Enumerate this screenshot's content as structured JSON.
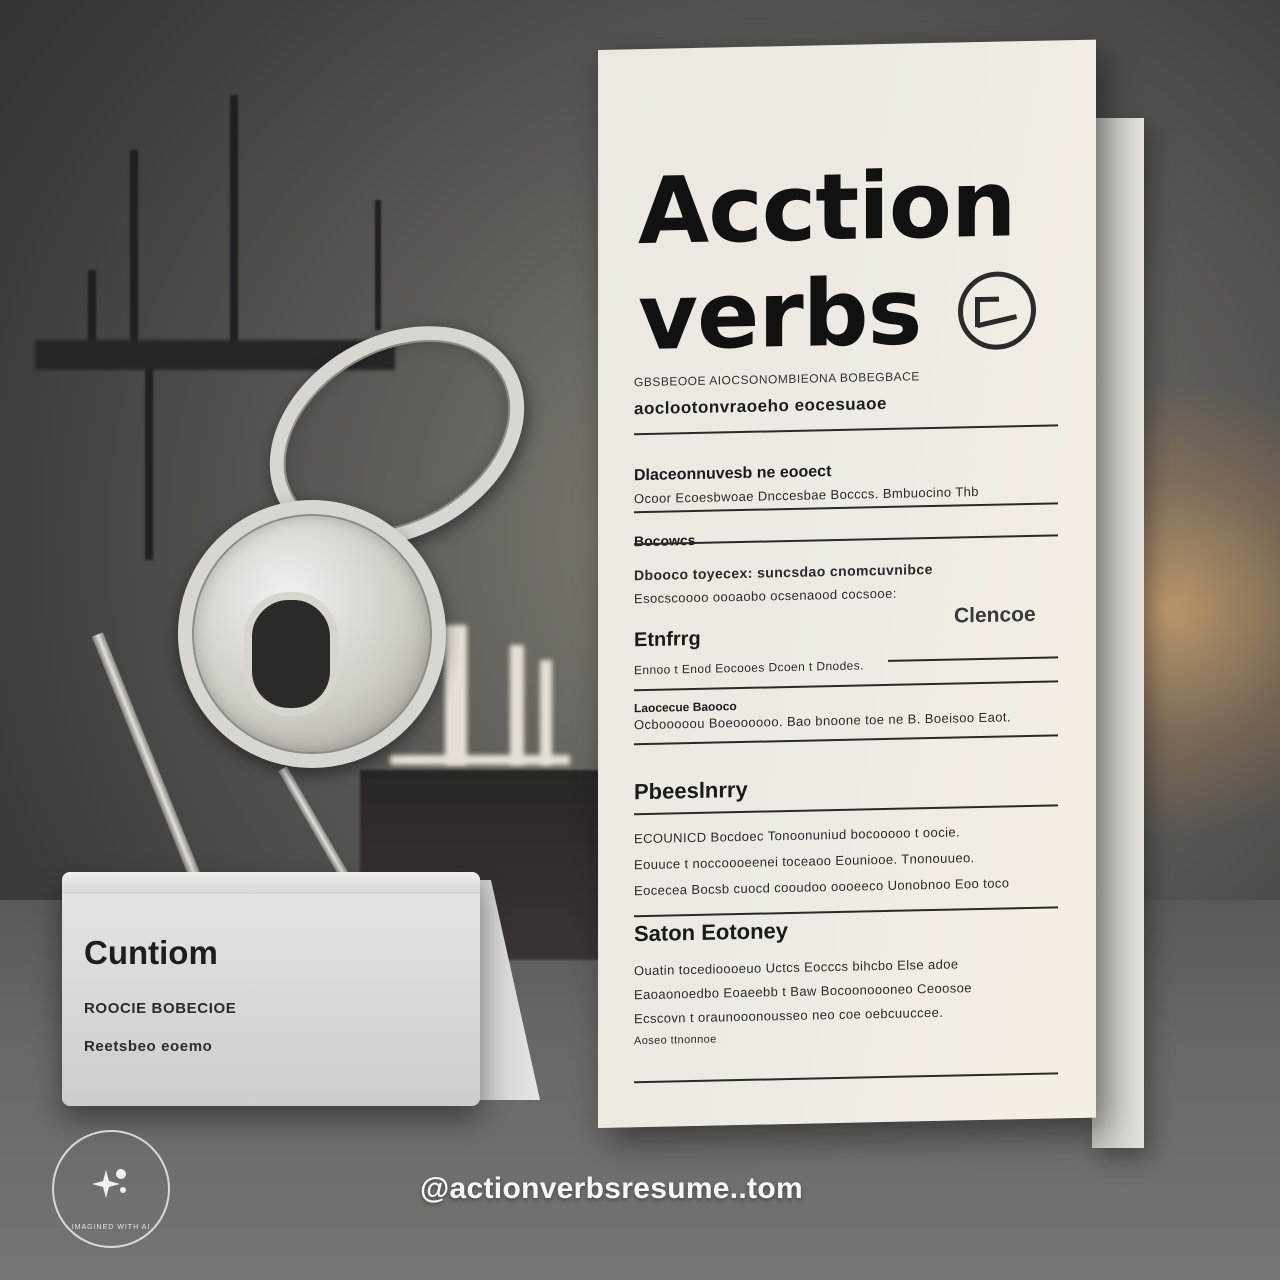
{
  "document": {
    "title_line1": "Acction",
    "title_line2": "verbs",
    "subtitle_small": "GBSBEOOE AIOCSONOMBIEONA BOBEGBACE",
    "subtitle_bold": "aoclootonvraoeho eocesuaoe",
    "section1_heading": "Dlaceonnuvesb ne eooect",
    "section1_line": "Ocoor Ecoesbwoae Dnccesbae Bocccs. Bmbuocino Thb",
    "section2_heading": "Bocowcs",
    "section2_line1": "Dbooco toyecex: suncsdao cnomcuvnibce",
    "section2_line2": "Esocscoooo oooaobo ocsenaood cocsooe:",
    "section3_heading": "Etnfrrg",
    "section3_right": "Clencoe",
    "section3_line": "Ennoo t Enod Eocooes Dcoen t Dnodes.",
    "section4_heading": "Laocecue Baooco",
    "section4_line": "Ocbooooou Boeoooooo. Bao bnoone toe ne B. Boeisoo Eaot.",
    "section5_heading": "Pbeeslnrry",
    "section5_lines": [
      "ECOUNICD Bocdoec Tonoonuniud bocooooo t oocie.",
      "Eouuce t noccoooeenei toceaoo Eouniooe. Tnonouueo.",
      "Eocecea Bocsb cuocd cooudoo oooeeco Uonobnoo Eoo toco"
    ],
    "section6_heading": "Saton Eotoney",
    "section6_lines": [
      "Ouatin tocedioooeuo Uctcs Eocccs bihcbo Else adoe",
      "Eaoaonoedbo Eoaeebb t Baw Bocoonoooneo Ceoosoe",
      "Ecscovn t oraunooonousseo neo coe oebcuuccee.",
      "Aoseo ttnonnoe"
    ]
  },
  "trophy": {
    "base_title": "Cuntiom",
    "base_line1": "ROOCIE BOBECIOE",
    "base_line2": "Reetsbeo eoemo"
  },
  "watermark": {
    "text": "IMAGINED WITH AI"
  },
  "handle": "@actionverbsresume..tom",
  "colors": {
    "background": "#4a4846",
    "paper": "#ece8e1",
    "text": "#111111",
    "accent_glow": "#ffc478"
  }
}
